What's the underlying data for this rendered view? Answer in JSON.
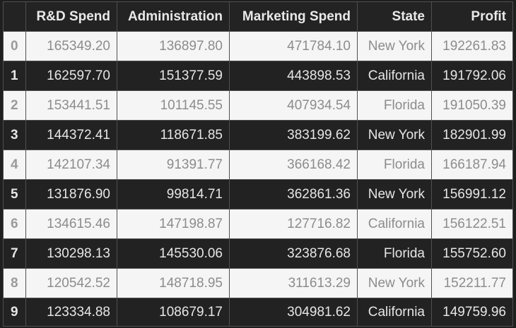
{
  "table": {
    "index_header": "",
    "columns": [
      "R&D Spend",
      "Administration",
      "Marketing Spend",
      "State",
      "Profit"
    ],
    "rows": [
      {
        "index": "0",
        "cells": [
          "165349.20",
          "136897.80",
          "471784.10",
          "New York",
          "192261.83"
        ]
      },
      {
        "index": "1",
        "cells": [
          "162597.70",
          "151377.59",
          "443898.53",
          "California",
          "191792.06"
        ]
      },
      {
        "index": "2",
        "cells": [
          "153441.51",
          "101145.55",
          "407934.54",
          "Florida",
          "191050.39"
        ]
      },
      {
        "index": "3",
        "cells": [
          "144372.41",
          "118671.85",
          "383199.62",
          "New York",
          "182901.99"
        ]
      },
      {
        "index": "4",
        "cells": [
          "142107.34",
          "91391.77",
          "366168.42",
          "Florida",
          "166187.94"
        ]
      },
      {
        "index": "5",
        "cells": [
          "131876.90",
          "99814.71",
          "362861.36",
          "New York",
          "156991.12"
        ]
      },
      {
        "index": "6",
        "cells": [
          "134615.46",
          "147198.87",
          "127716.82",
          "California",
          "156122.51"
        ]
      },
      {
        "index": "7",
        "cells": [
          "130298.13",
          "145530.06",
          "323876.68",
          "Florida",
          "155752.60"
        ]
      },
      {
        "index": "8",
        "cells": [
          "120542.52",
          "148718.95",
          "311613.29",
          "New York",
          "152211.77"
        ]
      },
      {
        "index": "9",
        "cells": [
          "123334.88",
          "108679.17",
          "304981.62",
          "California",
          "149759.96"
        ]
      }
    ]
  },
  "colors": {
    "background": "#1f1f1f",
    "header_background": "#232323",
    "light_row": "#f5f5f5",
    "dark_row": "#222222",
    "border": "#4f4f4f"
  }
}
